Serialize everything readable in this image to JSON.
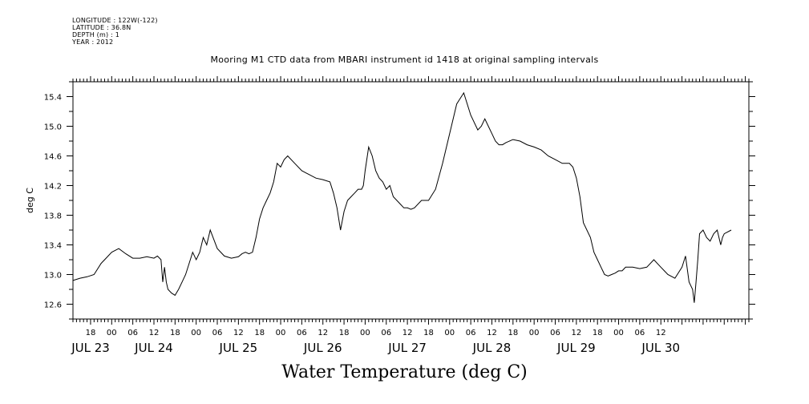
{
  "header": {
    "lines": [
      "LONGITUDE : 122W(-122)",
      "LATITUDE : 36.8N",
      "DEPTH (m) : 1",
      "YEAR : 2012"
    ]
  },
  "chart_data": {
    "type": "line",
    "title": "Mooring M1 CTD data from MBARI instrument id 1418 at original sampling intervals",
    "xlabel": "Water Temperature (deg C)",
    "ylabel": "deg C",
    "ylim": [
      12.4,
      15.6
    ],
    "yticks": [
      12.6,
      13.0,
      13.4,
      13.8,
      14.2,
      14.6,
      15.0,
      15.4
    ],
    "xlim": [
      "2012-07-23 13:00",
      "2012-07-30 13:00"
    ],
    "hour_tick_labels": [
      "18",
      "00",
      "06",
      "12",
      "18",
      "00",
      "06",
      "12",
      "18",
      "00",
      "06",
      "12",
      "18",
      "00",
      "06",
      "12",
      "18",
      "00",
      "06",
      "12",
      "18",
      "00",
      "06",
      "12",
      "18",
      "00",
      "06",
      "12"
    ],
    "day_labels": [
      "JUL 23",
      "JUL 24",
      "JUL 25",
      "JUL 26",
      "JUL 27",
      "JUL 28",
      "JUL 29",
      "JUL 30"
    ],
    "grid": false,
    "series": [
      {
        "color": "#000000",
        "x_hours_from_2012-07-23T00": [
          13,
          15,
          17,
          19,
          21,
          22,
          24,
          26,
          28,
          30,
          32,
          34,
          36,
          37,
          38,
          38.5,
          39,
          39.5,
          40,
          41,
          42,
          43,
          44,
          45,
          46,
          47,
          48,
          49,
          50,
          51,
          52,
          54,
          56,
          58,
          60,
          61,
          62,
          63,
          64,
          65,
          66,
          67,
          68,
          69,
          70,
          71,
          72,
          73,
          74,
          76,
          78,
          80,
          82,
          84,
          86,
          87,
          88,
          89,
          90,
          91,
          92,
          93,
          94,
          95,
          95.5,
          96,
          97,
          98,
          99,
          100,
          101,
          102,
          103,
          104,
          106,
          107,
          108,
          109,
          110,
          112,
          114,
          116,
          118,
          120,
          122,
          124,
          126,
          128,
          129,
          130,
          131,
          132,
          133,
          134,
          135,
          136,
          138,
          140,
          142,
          144,
          146,
          148,
          150,
          152,
          154,
          155,
          156,
          157,
          158,
          160,
          161,
          162,
          163,
          163.5,
          164,
          165,
          166,
          167,
          168,
          169,
          170,
          172,
          174,
          176,
          178,
          180,
          181,
          182,
          184,
          186,
          187,
          188,
          189,
          189.5,
          190,
          190.5,
          191,
          192,
          193,
          194,
          195,
          196,
          197,
          197.5,
          198,
          200,
          202
        ],
        "y": [
          12.92,
          12.95,
          12.97,
          13.0,
          13.15,
          13.2,
          13.3,
          13.35,
          13.28,
          13.22,
          13.22,
          13.24,
          13.22,
          13.25,
          13.2,
          12.9,
          13.1,
          12.9,
          12.8,
          12.75,
          12.72,
          12.8,
          12.9,
          13.0,
          13.15,
          13.3,
          13.2,
          13.3,
          13.5,
          13.4,
          13.6,
          13.35,
          13.25,
          13.22,
          13.24,
          13.28,
          13.3,
          13.28,
          13.3,
          13.5,
          13.75,
          13.9,
          14.0,
          14.1,
          14.25,
          14.5,
          14.45,
          14.55,
          14.6,
          14.5,
          14.4,
          14.35,
          14.3,
          14.28,
          14.25,
          14.1,
          13.9,
          13.6,
          13.85,
          14.0,
          14.05,
          14.1,
          14.15,
          14.15,
          14.2,
          14.4,
          14.72,
          14.6,
          14.4,
          14.3,
          14.25,
          14.15,
          14.2,
          14.05,
          13.95,
          13.9,
          13.9,
          13.88,
          13.9,
          14.0,
          14.0,
          14.15,
          14.5,
          14.9,
          15.3,
          15.45,
          15.15,
          14.95,
          15.0,
          15.1,
          15.0,
          14.9,
          14.8,
          14.75,
          14.75,
          14.78,
          14.82,
          14.8,
          14.75,
          14.72,
          14.68,
          14.6,
          14.55,
          14.5,
          14.5,
          14.45,
          14.3,
          14.05,
          13.7,
          13.5,
          13.3,
          13.2,
          13.1,
          13.05,
          13.0,
          12.98,
          13.0,
          13.02,
          13.05,
          13.05,
          13.1,
          13.1,
          13.08,
          13.1,
          13.2,
          13.1,
          13.05,
          13.0,
          12.95,
          13.1,
          13.25,
          12.9,
          12.8,
          12.62,
          12.9,
          13.2,
          13.55,
          13.6,
          13.5,
          13.45,
          13.55,
          13.6,
          13.4,
          13.5,
          13.55,
          13.6
        ]
      }
    ]
  }
}
